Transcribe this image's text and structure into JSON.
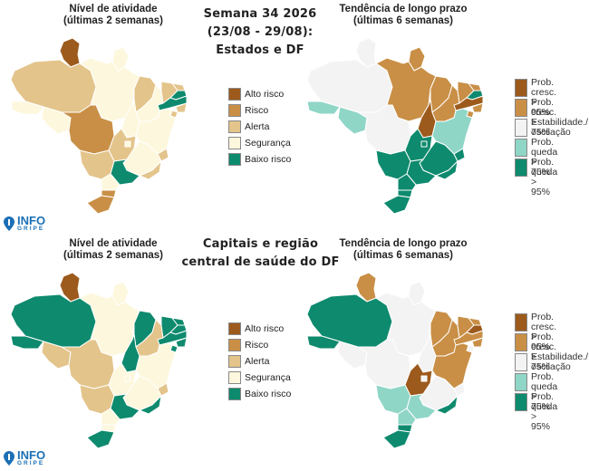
{
  "panels": {
    "top_left_title": "Nível de atividade\n(últimas 2 semanas)",
    "top_right_title": "Tendência de longo prazo\n(últimas 6 semanas)",
    "bottom_left_title": "Nível de atividade\n(últimas 2 semanas)",
    "bottom_right_title": "Tendência de longo prazo\n(últimas 6 semanas)"
  },
  "header": {
    "top": "Semana 34 2026\n(23/08 - 29/08):\nEstados e DF",
    "bottom": "Capitais e região\ncentral de saúde do DF"
  },
  "colors": {
    "alto_risco": "#9c5a1c",
    "risco": "#c98f46",
    "alerta": "#e3c48b",
    "seguranca": "#fdf7dd",
    "baixo_risco": "#0e8a6e",
    "cresc95": "#9c5a1c",
    "cresc75": "#c98f46",
    "estab": "#f3f3f3",
    "queda75": "#8fd6c7",
    "queda95": "#0e8a6e"
  },
  "legend_activity": [
    {
      "key": "alto_risco",
      "label": "Alto risco"
    },
    {
      "key": "risco",
      "label": "Risco"
    },
    {
      "key": "alerta",
      "label": "Alerta"
    },
    {
      "key": "seguranca",
      "label": "Segurança"
    },
    {
      "key": "baixo_risco",
      "label": "Baixo risco"
    }
  ],
  "legend_trend": [
    {
      "key": "cresc95",
      "label": "Prob. cresc.\n> 95%"
    },
    {
      "key": "cresc75",
      "label": "Prob. cresc.\n> 75%"
    },
    {
      "key": "estab",
      "label": "Estabilidade./\noscilação"
    },
    {
      "key": "queda75",
      "label": "Prob. queda\n> 75%"
    },
    {
      "key": "queda95",
      "label": "Prob. queda\n> 95%"
    }
  ],
  "logo": {
    "word": "INFO",
    "sub": "GRIPE"
  },
  "maps": {
    "top_activity": {
      "RR": "alto_risco",
      "AP": "seguranca",
      "AM": "alerta",
      "PA": "seguranca",
      "AC": "seguranca",
      "RO": "seguranca",
      "MT": "risco",
      "TO": "seguranca",
      "MA": "alerta",
      "PI": "seguranca",
      "CE": "alerta",
      "RN": "alerta",
      "PB": "baixo_risco",
      "PE": "baixo_risco",
      "AL": "alerta",
      "SE": "alerta",
      "BA": "seguranca",
      "GO": "alerta",
      "DF": "seguranca",
      "MG": "seguranca",
      "ES": "alerta",
      "MS": "alerta",
      "SP": "baixo_risco",
      "RJ": "alerta",
      "PR": "seguranca",
      "SC": "risco",
      "RS": "risco"
    },
    "top_trend": {
      "RR": "estab",
      "AP": "cresc75",
      "AM": "estab",
      "PA": "cresc75",
      "AC": "queda75",
      "RO": "queda75",
      "MT": "estab",
      "TO": "cresc95",
      "MA": "cresc75",
      "PI": "cresc75",
      "CE": "cresc75",
      "RN": "cresc75",
      "PB": "queda95",
      "PE": "cresc95",
      "AL": "cresc75",
      "SE": "cresc75",
      "BA": "queda75",
      "GO": "queda95",
      "DF": "queda95",
      "MG": "queda95",
      "ES": "queda95",
      "MS": "queda95",
      "SP": "queda95",
      "RJ": "queda95",
      "PR": "queda95",
      "SC": "queda95",
      "RS": "queda95"
    },
    "bottom_activity": {
      "RR": "alto_risco",
      "AP": "seguranca",
      "AM": "baixo_risco",
      "PA": "seguranca",
      "AC": "baixo_risco",
      "RO": "alerta",
      "MT": "alerta",
      "TO": "baixo_risco",
      "MA": "baixo_risco",
      "PI": "alerta",
      "CE": "baixo_risco",
      "RN": "baixo_risco",
      "PB": "baixo_risco",
      "PE": "baixo_risco",
      "AL": "baixo_risco",
      "SE": "baixo_risco",
      "BA": "seguranca",
      "GO": "seguranca",
      "DF": "seguranca",
      "MG": "seguranca",
      "ES": "alerta",
      "MS": "alerta",
      "SP": "baixo_risco",
      "RJ": "baixo_risco",
      "PR": "seguranca",
      "SC": "seguranca",
      "RS": "baixo_risco"
    },
    "bottom_trend": {
      "RR": "cresc75",
      "AP": "estab",
      "AM": "queda95",
      "PA": "estab",
      "AC": "queda95",
      "RO": "estab",
      "MT": "estab",
      "TO": "estab",
      "MA": "cresc75",
      "PI": "cresc75",
      "CE": "cresc75",
      "RN": "cresc75",
      "PB": "cresc95",
      "PE": "cresc75",
      "AL": "cresc75",
      "SE": "estab",
      "BA": "cresc75",
      "GO": "cresc95",
      "DF": "estab",
      "MG": "estab",
      "ES": "estab",
      "MS": "queda75",
      "SP": "queda75",
      "RJ": "queda95",
      "PR": "queda75",
      "SC": "queda95",
      "RS": "queda95"
    }
  }
}
